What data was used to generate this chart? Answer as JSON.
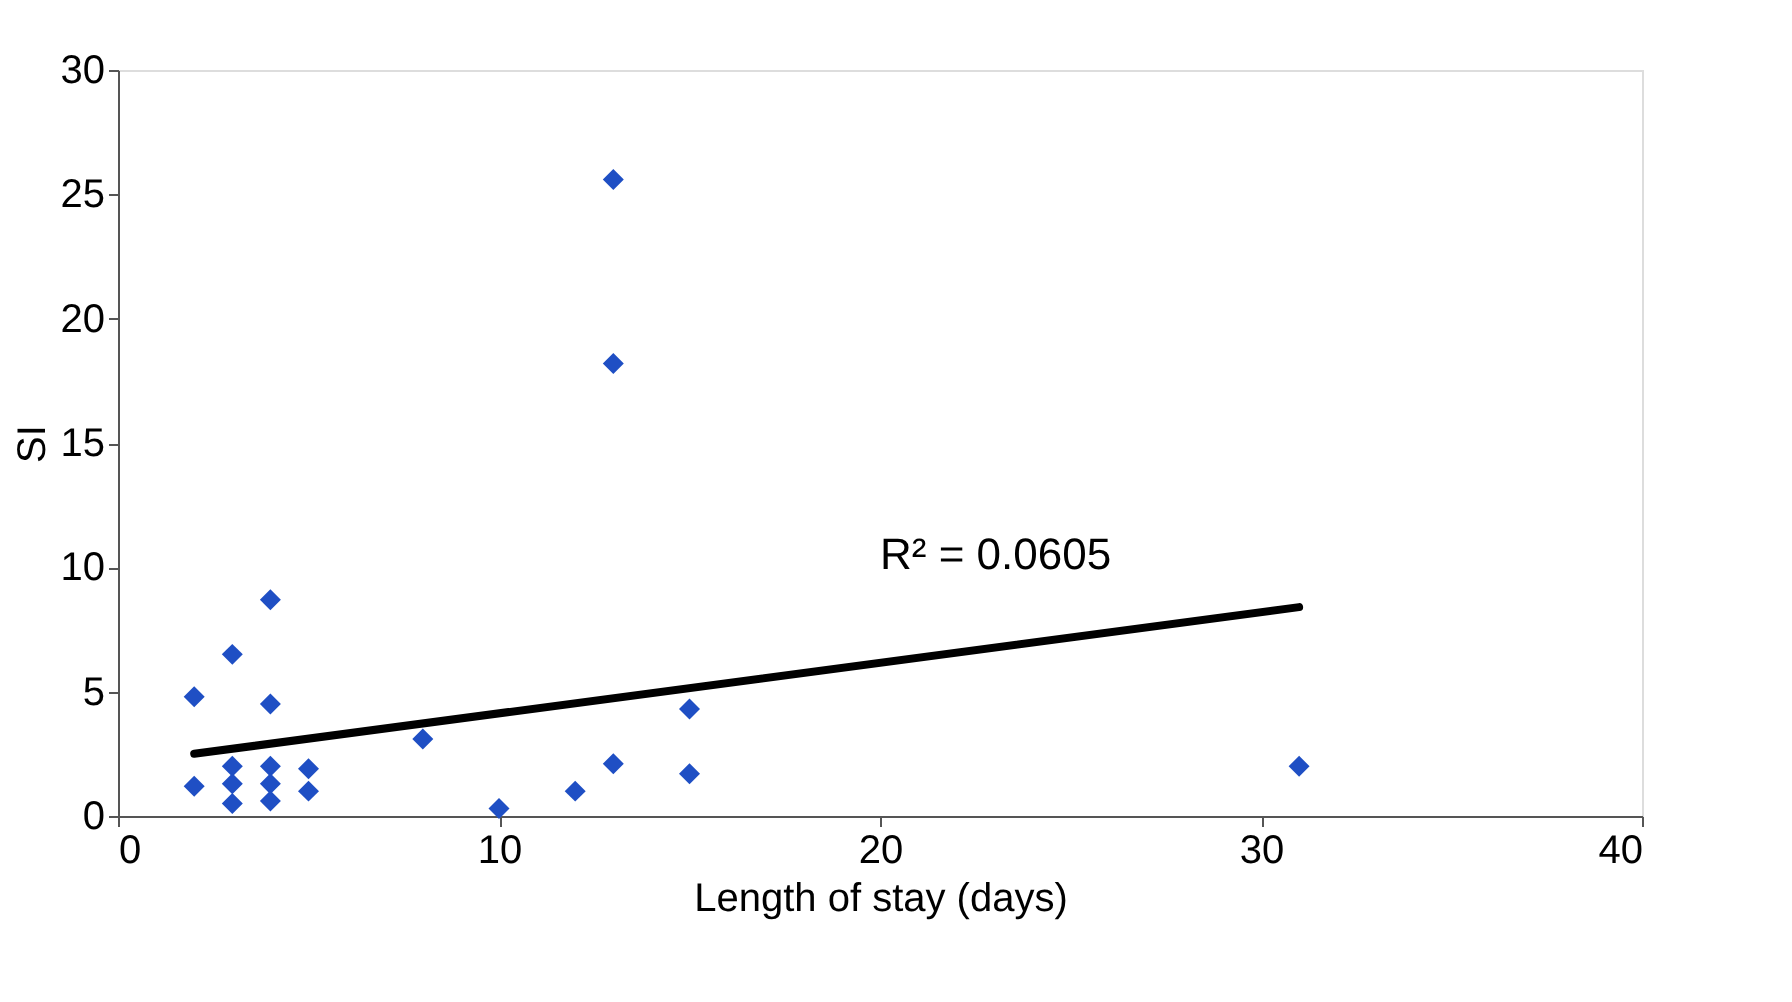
{
  "chart_data": {
    "type": "scatter",
    "xlabel": "Length of stay (days)",
    "ylabel": "SI",
    "xlim": [
      0,
      40
    ],
    "xticks": [
      0,
      10,
      20,
      30,
      40
    ],
    "ylim": [
      0,
      30
    ],
    "yticks": [
      0,
      5,
      10,
      15,
      20,
      25,
      30
    ],
    "grid": false,
    "series": [
      {
        "color": "#1f4fc4",
        "marker": "diamond",
        "x": [
          2,
          2,
          3,
          3,
          3,
          3,
          4,
          4,
          4,
          4,
          4,
          5,
          5,
          8,
          10,
          12,
          13,
          13,
          13,
          15,
          15,
          31
        ],
        "values": [
          4.8,
          1.2,
          6.5,
          2.0,
          1.3,
          0.5,
          8.7,
          4.5,
          2.0,
          1.3,
          0.6,
          1.9,
          1.0,
          3.1,
          0.3,
          1.0,
          2.1,
          18.2,
          25.6,
          4.3,
          1.7,
          2.0
        ]
      },
      {
        "type": "line",
        "color": "#000000",
        "line_style": "solid",
        "x": [
          2,
          31
        ],
        "values": [
          2.5,
          8.4
        ]
      }
    ],
    "annotations": [
      "R² = 0.0605"
    ]
  }
}
